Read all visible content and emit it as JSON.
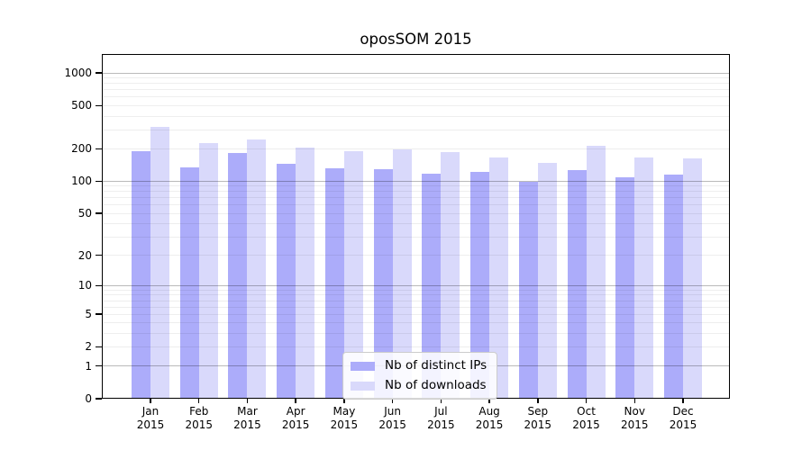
{
  "chart_data": {
    "type": "bar",
    "title": "oposSOM 2015",
    "categories": [
      "Jan",
      "Feb",
      "Mar",
      "Apr",
      "May",
      "Jun",
      "Jul",
      "Aug",
      "Sep",
      "Oct",
      "Nov",
      "Dec"
    ],
    "category_year_label": "2015",
    "series": [
      {
        "name": "Nb of distinct IPs",
        "color": "#acacfa",
        "values": [
          190,
          134,
          182,
          146,
          132,
          130,
          118,
          123,
          98,
          127,
          108,
          115
        ]
      },
      {
        "name": "Nb of downloads",
        "color": "#d9d9fb",
        "values": [
          320,
          228,
          245,
          205,
          190,
          196,
          185,
          165,
          147,
          213,
          165,
          164
        ]
      }
    ],
    "y_axis": {
      "scale": "log1p",
      "tick_labels": [
        "0",
        "1",
        "2",
        "5",
        "10",
        "20",
        "50",
        "100",
        "200",
        "500",
        "1000"
      ],
      "ticks": [
        0,
        1,
        2,
        5,
        10,
        20,
        50,
        100,
        200,
        500,
        1000
      ],
      "ylim": [
        0,
        1500
      ]
    },
    "grid": {
      "on": true,
      "major": [
        1,
        10,
        100,
        1000
      ],
      "minor": [
        2,
        3,
        4,
        5,
        6,
        7,
        8,
        9,
        20,
        30,
        40,
        50,
        60,
        70,
        80,
        90,
        200,
        300,
        400,
        500,
        600,
        700,
        800,
        900
      ]
    },
    "legend": {
      "position": "inside-bottom-center"
    },
    "colors": {
      "frame": "#000000",
      "major_gridline": "#bdbdbd",
      "minor_gridline": "#ededed",
      "legend_border": "#cccccc",
      "text": "#000000"
    }
  }
}
